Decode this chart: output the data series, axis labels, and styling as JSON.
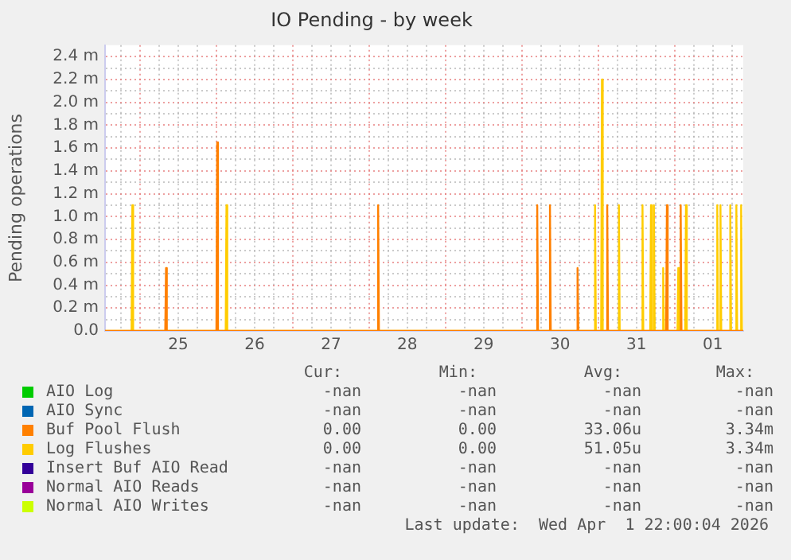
{
  "chart_data": {
    "type": "line",
    "title": "IO Pending - by week",
    "ylabel": "Pending operations",
    "xlim": [
      "2026-03-24T13:00",
      "2026-04-01T21:35"
    ],
    "ylim": [
      0,
      2.5
    ],
    "xticks": [
      {
        "value": "2026-03-24T18:00",
        "label": null
      },
      {
        "value": "2026-03-25T00:00",
        "label": null
      },
      {
        "value": "2026-03-25T06:00",
        "label": null
      },
      {
        "value": "2026-03-25T12:00",
        "label": "25"
      },
      {
        "value": "2026-03-25T18:00",
        "label": null
      },
      {
        "value": "2026-03-26T00:00",
        "label": null
      },
      {
        "value": "2026-03-26T06:00",
        "label": null
      },
      {
        "value": "2026-03-26T12:00",
        "label": "26"
      },
      {
        "value": "2026-03-26T18:00",
        "label": null
      },
      {
        "value": "2026-03-27T00:00",
        "label": null
      },
      {
        "value": "2026-03-27T06:00",
        "label": null
      },
      {
        "value": "2026-03-27T12:00",
        "label": "27"
      },
      {
        "value": "2026-03-27T18:00",
        "label": null
      },
      {
        "value": "2026-03-28T00:00",
        "label": null
      },
      {
        "value": "2026-03-28T06:00",
        "label": null
      },
      {
        "value": "2026-03-28T12:00",
        "label": "28"
      },
      {
        "value": "2026-03-28T18:00",
        "label": null
      },
      {
        "value": "2026-03-29T00:00",
        "label": null
      },
      {
        "value": "2026-03-29T06:00",
        "label": null
      },
      {
        "value": "2026-03-29T12:00",
        "label": "29"
      },
      {
        "value": "2026-03-29T18:00",
        "label": null
      },
      {
        "value": "2026-03-30T00:00",
        "label": null
      },
      {
        "value": "2026-03-30T06:00",
        "label": null
      },
      {
        "value": "2026-03-30T12:00",
        "label": "30"
      },
      {
        "value": "2026-03-30T18:00",
        "label": null
      },
      {
        "value": "2026-03-31T00:00",
        "label": null
      },
      {
        "value": "2026-03-31T06:00",
        "label": null
      },
      {
        "value": "2026-03-31T12:00",
        "label": "31"
      },
      {
        "value": "2026-03-31T18:00",
        "label": null
      },
      {
        "value": "2026-04-01T00:00",
        "label": null
      },
      {
        "value": "2026-04-01T06:00",
        "label": null
      },
      {
        "value": "2026-04-01T12:00",
        "label": "01"
      },
      {
        "value": "2026-04-01T18:00",
        "label": null
      }
    ],
    "yticks": [
      {
        "value": 0,
        "label": "0.0"
      },
      {
        "value": 0.1,
        "label": null
      },
      {
        "value": 0.2,
        "label": "0.2 m"
      },
      {
        "value": 0.3,
        "label": null
      },
      {
        "value": 0.4,
        "label": "0.4 m"
      },
      {
        "value": 0.5,
        "label": null
      },
      {
        "value": 0.6,
        "label": "0.6 m"
      },
      {
        "value": 0.7,
        "label": null
      },
      {
        "value": 0.8,
        "label": "0.8 m"
      },
      {
        "value": 0.9,
        "label": null
      },
      {
        "value": 1.0,
        "label": "1.0 m"
      },
      {
        "value": 1.1,
        "label": null
      },
      {
        "value": 1.2,
        "label": "1.2 m"
      },
      {
        "value": 1.3,
        "label": null
      },
      {
        "value": 1.4,
        "label": "1.4 m"
      },
      {
        "value": 1.5,
        "label": null
      },
      {
        "value": 1.6,
        "label": "1.6 m"
      },
      {
        "value": 1.7,
        "label": null
      },
      {
        "value": 1.8,
        "label": "1.8 m"
      },
      {
        "value": 1.9,
        "label": null
      },
      {
        "value": 2.0,
        "label": "2.0 m"
      },
      {
        "value": 2.1,
        "label": null
      },
      {
        "value": 2.2,
        "label": "2.2 m"
      },
      {
        "value": 2.3,
        "label": null
      },
      {
        "value": 2.4,
        "label": "2.4 m"
      }
    ],
    "grid": true,
    "legend": "bottom",
    "marker": "none",
    "series": [
      {
        "name": "AIO Log",
        "color": "#00cc00"
      },
      {
        "name": "AIO Sync",
        "color": "#0066b3"
      },
      {
        "name": "Buf Pool Flush",
        "color": "#ff8000",
        "x": [
          "2026-03-24T13:00",
          "2026-03-25T07:55",
          "2026-03-25T08:10",
          "2026-03-25T08:25",
          "2026-03-26T00:00",
          "2026-03-26T00:15",
          "2026-03-26T00:30",
          "2026-03-28T02:35",
          "2026-03-28T02:50",
          "2026-03-28T03:05",
          "2026-03-30T04:35",
          "2026-03-30T04:50",
          "2026-03-30T05:05",
          "2026-03-30T08:35",
          "2026-03-30T08:50",
          "2026-03-30T09:05",
          "2026-03-30T17:15",
          "2026-03-30T17:30",
          "2026-03-30T17:45",
          "2026-03-31T02:35",
          "2026-03-31T02:50",
          "2026-03-31T03:05",
          "2026-03-31T21:20",
          "2026-03-31T21:35",
          "2026-03-31T21:50",
          "2026-04-01T01:40",
          "2026-04-01T01:55",
          "2026-04-01T02:10",
          "2026-04-01T21:35"
        ],
        "values": [
          0,
          0,
          0.55,
          0,
          0,
          1.65,
          0,
          0,
          1.1,
          0,
          0,
          1.1,
          0,
          0,
          1.1,
          0,
          0,
          0.55,
          0,
          0,
          1.1,
          0,
          0,
          1.1,
          0,
          0,
          1.1,
          0,
          0
        ]
      },
      {
        "name": "Log Flushes",
        "color": "#ffcc00",
        "x": [
          "2026-03-24T13:00",
          "2026-03-24T21:20",
          "2026-03-24T21:35",
          "2026-03-24T21:50",
          "2026-03-26T02:55",
          "2026-03-26T03:10",
          "2026-03-26T03:25",
          "2026-03-30T22:45",
          "2026-03-30T23:00",
          "2026-03-30T23:15",
          "2026-03-31T00:55",
          "2026-03-31T01:10",
          "2026-03-31T01:25",
          "2026-03-31T06:15",
          "2026-03-31T06:30",
          "2026-03-31T06:45",
          "2026-03-31T13:40",
          "2026-03-31T13:55",
          "2026-03-31T14:10",
          "2026-03-31T16:20",
          "2026-03-31T16:35",
          "2026-03-31T16:50",
          "2026-03-31T17:15",
          "2026-03-31T17:30",
          "2026-03-31T17:45",
          "2026-03-31T20:10",
          "2026-03-31T20:25",
          "2026-03-31T20:40",
          "2026-04-01T00:55",
          "2026-04-01T01:10",
          "2026-04-01T01:25",
          "2026-04-01T03:20",
          "2026-04-01T03:35",
          "2026-04-01T03:50",
          "2026-04-01T13:10",
          "2026-04-01T13:25",
          "2026-04-01T13:40",
          "2026-04-01T14:10",
          "2026-04-01T14:25",
          "2026-04-01T14:40",
          "2026-04-01T17:15",
          "2026-04-01T17:30",
          "2026-04-01T17:45",
          "2026-04-01T19:10",
          "2026-04-01T19:25",
          "2026-04-01T19:40",
          "2026-04-01T20:40",
          "2026-04-01T20:55",
          "2026-04-01T21:10",
          "2026-04-01T21:35"
        ],
        "values": [
          0,
          0,
          1.1,
          0,
          0,
          1.1,
          0,
          0,
          1.1,
          0,
          0,
          2.2,
          0,
          0,
          1.1,
          0,
          0,
          1.1,
          0,
          0,
          1.1,
          0,
          0,
          1.1,
          0,
          0,
          0.55,
          0,
          0,
          0.55,
          0,
          0,
          1.1,
          0,
          0,
          1.1,
          0,
          0,
          1.1,
          0,
          0,
          1.1,
          0,
          0,
          1.1,
          0,
          0,
          1.1,
          0,
          0
        ]
      },
      {
        "name": "Insert Buf AIO Read",
        "color": "#330099"
      },
      {
        "name": "Normal AIO Reads",
        "color": "#990099"
      },
      {
        "name": "Normal AIO Writes",
        "color": "#ccff00"
      }
    ],
    "annotations": [
      "Cur:",
      "Min:",
      "Avg:",
      "Max:",
      "-nan",
      "-nan",
      "-nan",
      "-nan",
      "-nan",
      "-nan",
      "-nan",
      "-nan",
      "0.00",
      "0.00",
      "33.06u",
      "3.34m",
      "0.00",
      "0.00",
      "51.05u",
      "3.34m",
      "-nan",
      "-nan",
      "-nan",
      "-nan",
      "-nan",
      "-nan",
      "-nan",
      "-nan",
      "-nan",
      "-nan",
      "-nan",
      "-nan",
      "Last update:  Wed Apr  1 22:00:04 2026"
    ]
  }
}
